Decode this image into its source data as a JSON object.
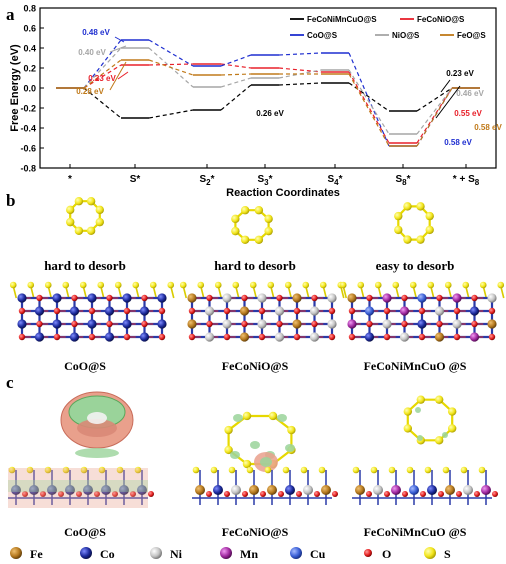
{
  "panels": {
    "a": "a",
    "b": "b",
    "c": "c"
  },
  "chart_data": {
    "type": "line",
    "title": "",
    "xlabel": "Reaction Coordinates",
    "ylabel": "Free Energy (eV)",
    "ylim": [
      -0.8,
      0.8
    ],
    "yticks": [
      "0.8",
      "0.6",
      "0.4",
      "0.2",
      "0.0",
      "-0.2",
      "-0.4",
      "-0.6",
      "-0.8"
    ],
    "categories": [
      "*",
      "S*",
      "S2*",
      "S3*",
      "S4*",
      "S8*",
      "* + S8"
    ],
    "category_labels": [
      {
        "main": "*",
        "sub": ""
      },
      {
        "main": "S*",
        "sub": ""
      },
      {
        "main": "S",
        "sub": "2",
        "tail": "*"
      },
      {
        "main": "S",
        "sub": "3",
        "tail": "*"
      },
      {
        "main": "S",
        "sub": "4",
        "tail": "*"
      },
      {
        "main": "S",
        "sub": "8",
        "tail": "*"
      },
      {
        "main": "* + S",
        "sub": "8",
        "tail": ""
      }
    ],
    "legend_position": "top-right",
    "series": [
      {
        "name": "FeCoNiMnCuO@S",
        "color": "#000000",
        "values": [
          0.0,
          -0.3,
          -0.22,
          0.03,
          0.05,
          -0.23,
          0.0
        ]
      },
      {
        "name": "FeCoNiO@S",
        "color": "#e8202a",
        "values": [
          0.0,
          0.23,
          0.24,
          0.2,
          0.16,
          -0.55,
          0.0
        ]
      },
      {
        "name": "CoO@S",
        "color": "#1f2fd0",
        "values": [
          0.0,
          0.48,
          0.22,
          0.33,
          0.35,
          -0.58,
          0.0
        ]
      },
      {
        "name": "NiO@S",
        "color": "#a6a6a6",
        "values": [
          0.0,
          0.4,
          0.01,
          0.1,
          0.18,
          -0.46,
          0.0
        ]
      },
      {
        "name": "FeO@S",
        "color": "#c07a1a",
        "values": [
          0.0,
          0.28,
          0.13,
          0.14,
          0.14,
          -0.58,
          0.0
        ]
      }
    ],
    "annotations": [
      {
        "text": "0.48 eV",
        "color": "#1f2fd0"
      },
      {
        "text": "0.40 eV",
        "color": "#a6a6a6"
      },
      {
        "text": "0.23 eV",
        "color": "#e8202a"
      },
      {
        "text": "0.28 eV",
        "color": "#c07a1a"
      },
      {
        "text": "0.26 eV",
        "color": "#000000"
      },
      {
        "text": "0.23 eV",
        "color": "#000000"
      },
      {
        "text": "0.46 eV",
        "color": "#a6a6a6"
      },
      {
        "text": "0.55 eV",
        "color": "#e8202a"
      },
      {
        "text": "0.58 eV",
        "color": "#c07a1a"
      },
      {
        "text": "0.58 eV",
        "color": "#1f2fd0"
      }
    ]
  },
  "panel_b": {
    "desorb_labels": [
      "hard to desorb",
      "hard to desorb",
      "easy to desorb"
    ],
    "structure_labels": [
      "CoO@S",
      "FeCoNiO@S",
      "FeCoNiMnCuO @S"
    ]
  },
  "panel_c": {
    "structure_labels": [
      "CoO@S",
      "FeCoNiO@S",
      "FeCoNiMnCuO @S"
    ]
  },
  "element_legend": [
    {
      "symbol": "Fe",
      "color": "#b5791f"
    },
    {
      "symbol": "Co",
      "color": "#1c2a9c"
    },
    {
      "symbol": "Ni",
      "color": "#c4c4c4"
    },
    {
      "symbol": "Mn",
      "color": "#a12aa1"
    },
    {
      "symbol": "Cu",
      "color": "#3a5fd6"
    },
    {
      "symbol": "O",
      "color": "#e62020"
    },
    {
      "symbol": "S",
      "color": "#f2e51a"
    }
  ]
}
